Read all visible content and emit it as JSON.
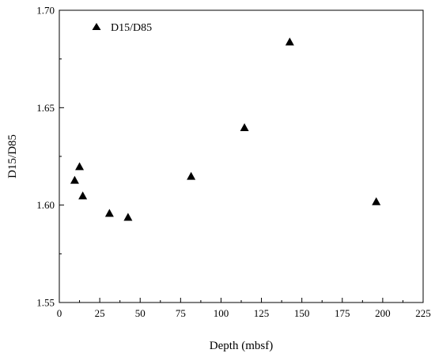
{
  "chart_data": {
    "type": "scatter",
    "title": "",
    "xlabel": "Depth (mbsf)",
    "ylabel": "D15/D85",
    "xlim": [
      0,
      225
    ],
    "ylim": [
      1.55,
      1.7
    ],
    "x_ticks": [
      "0",
      "25",
      "50",
      "75",
      "100",
      "125",
      "150",
      "175",
      "200",
      "225"
    ],
    "y_ticks": [
      "1.55",
      "1.60",
      "1.65",
      "1.70"
    ],
    "grid": false,
    "legend_position": "top-left",
    "marker": "filled-triangle",
    "marker_color": "#000000",
    "series": [
      {
        "name": "D15/D85",
        "points": [
          {
            "x": 9.5,
            "y": 1.613
          },
          {
            "x": 12.5,
            "y": 1.62
          },
          {
            "x": 14.5,
            "y": 1.605
          },
          {
            "x": 31,
            "y": 1.596
          },
          {
            "x": 42.5,
            "y": 1.594
          },
          {
            "x": 81.5,
            "y": 1.615
          },
          {
            "x": 114.5,
            "y": 1.64
          },
          {
            "x": 142.5,
            "y": 1.684
          },
          {
            "x": 196,
            "y": 1.602
          }
        ]
      }
    ]
  }
}
